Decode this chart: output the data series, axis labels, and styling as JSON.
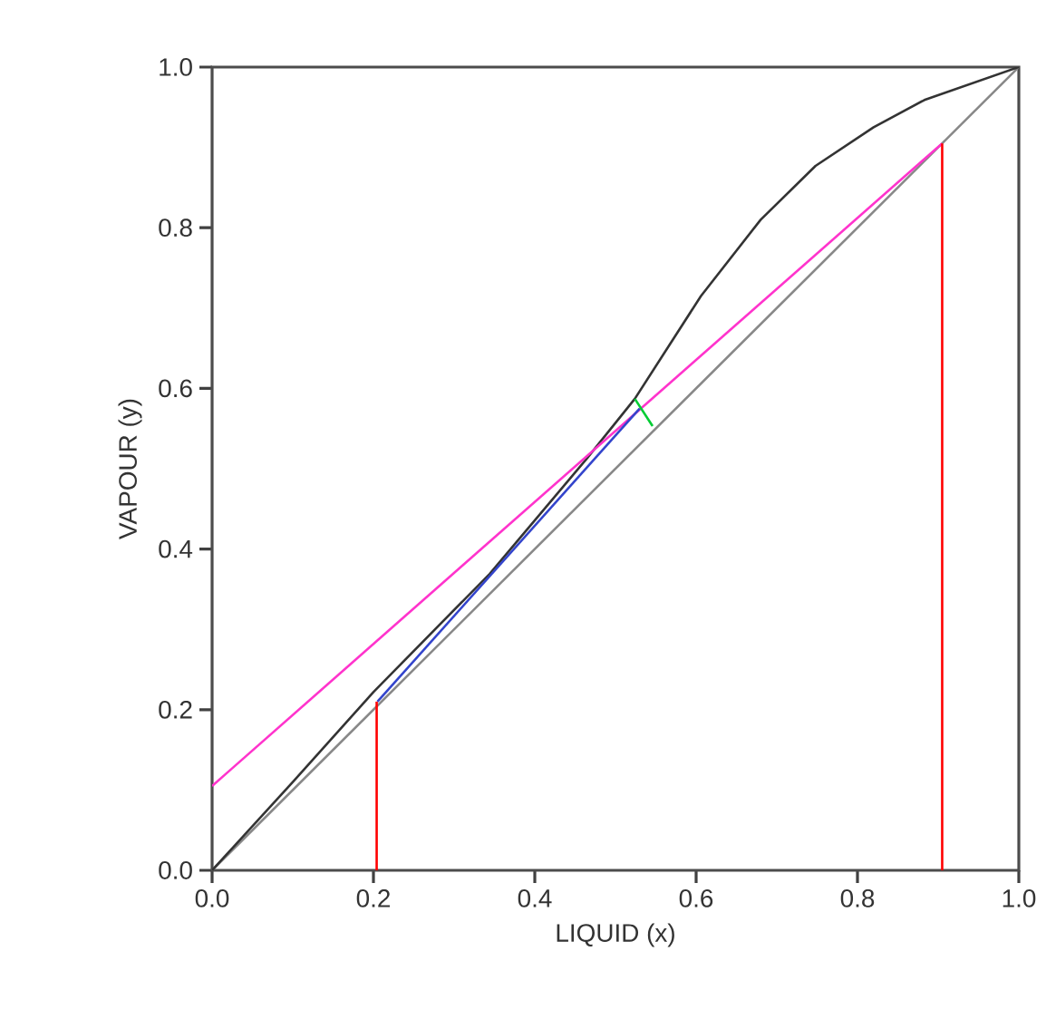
{
  "chart_data": {
    "type": "line",
    "xlabel": "LIQUID (x)",
    "ylabel": "VAPOUR (y)",
    "xlim": [
      0,
      1
    ],
    "ylim": [
      0,
      1
    ],
    "xticks": [
      {
        "value": 0,
        "label": "0.0"
      },
      {
        "value": 0.2,
        "label": "0.2"
      },
      {
        "value": 0.4,
        "label": "0.4"
      },
      {
        "value": 0.6,
        "label": "0.6"
      },
      {
        "value": 0.8,
        "label": "0.8"
      },
      {
        "value": 1,
        "label": "1.0"
      }
    ],
    "yticks": [
      {
        "value": 0,
        "label": "0.0"
      },
      {
        "value": 0.2,
        "label": "0.2"
      },
      {
        "value": 0.4,
        "label": "0.4"
      },
      {
        "value": 0.6,
        "label": "0.6"
      },
      {
        "value": 0.8,
        "label": "0.8"
      },
      {
        "value": 1,
        "label": "1.0"
      }
    ],
    "grid": false,
    "marker": "none",
    "line_style": "solid",
    "series": [
      {
        "color": "#888888",
        "x": [
          0,
          1
        ],
        "values": [
          0,
          1
        ]
      },
      {
        "color": "#333333",
        "x": [
          0,
          0.1,
          0.2,
          0.344,
          0.464,
          0.524,
          0.606,
          0.68,
          0.748,
          0.82,
          0.883,
          1
        ],
        "values": [
          0,
          0.11,
          0.222,
          0.369,
          0.512,
          0.587,
          0.715,
          0.81,
          0.877,
          0.925,
          0.959,
          1
        ]
      },
      {
        "color": "#ff33cc",
        "x": [
          0,
          0.905
        ],
        "values": [
          0.105,
          0.905
        ]
      },
      {
        "color": "#3344cc",
        "x": [
          0.205,
          0.53
        ],
        "values": [
          0.21,
          0.575
        ]
      },
      {
        "color": "#00cc33",
        "x": [
          0.546,
          0.524
        ],
        "values": [
          0.553,
          0.587
        ]
      },
      {
        "color": "#ff0000",
        "x": [
          0.204,
          0.204
        ],
        "values": [
          0,
          0.21
        ]
      },
      {
        "color": "#ff0000",
        "x": [
          0.905,
          0.905
        ],
        "values": [
          0,
          0.905
        ]
      }
    ]
  }
}
